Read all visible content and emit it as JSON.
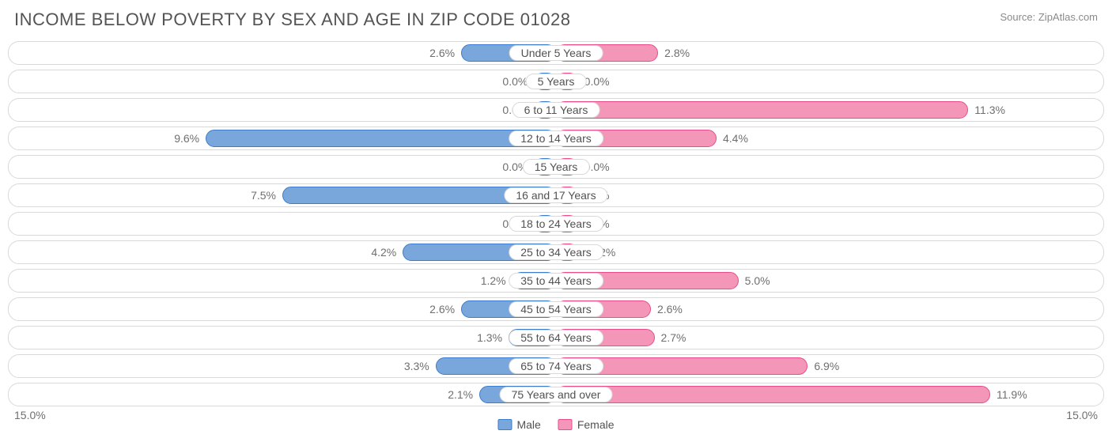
{
  "title": "INCOME BELOW POVERTY BY SEX AND AGE IN ZIP CODE 01028",
  "source": "Source: ZipAtlas.com",
  "axis_max_label": "15.0%",
  "axis_max_value": 15.0,
  "min_bar_pct": 2.0,
  "colors": {
    "male_fill": "#79a7db",
    "male_stroke": "#3d7cc9",
    "female_fill": "#f396b8",
    "female_stroke": "#e94d8b",
    "track_border": "#d9d9d9",
    "text": "#6f6f6f",
    "title": "#545454",
    "background": "#ffffff"
  },
  "legend": {
    "male": "Male",
    "female": "Female"
  },
  "rows": [
    {
      "category": "Under 5 Years",
      "male": 2.6,
      "male_label": "2.6%",
      "female": 2.8,
      "female_label": "2.8%"
    },
    {
      "category": "5 Years",
      "male": 0.0,
      "male_label": "0.0%",
      "female": 0.0,
      "female_label": "0.0%"
    },
    {
      "category": "6 to 11 Years",
      "male": 0.0,
      "male_label": "0.0%",
      "female": 11.3,
      "female_label": "11.3%"
    },
    {
      "category": "12 to 14 Years",
      "male": 9.6,
      "male_label": "9.6%",
      "female": 4.4,
      "female_label": "4.4%"
    },
    {
      "category": "15 Years",
      "male": 0.0,
      "male_label": "0.0%",
      "female": 0.0,
      "female_label": "0.0%"
    },
    {
      "category": "16 and 17 Years",
      "male": 7.5,
      "male_label": "7.5%",
      "female": 0.0,
      "female_label": "0.0%"
    },
    {
      "category": "18 to 24 Years",
      "male": 0.0,
      "male_label": "0.0%",
      "female": 0.0,
      "female_label": "0.0%"
    },
    {
      "category": "25 to 34 Years",
      "male": 4.2,
      "male_label": "4.2%",
      "female": 0.12,
      "female_label": "0.12%"
    },
    {
      "category": "35 to 44 Years",
      "male": 1.2,
      "male_label": "1.2%",
      "female": 5.0,
      "female_label": "5.0%"
    },
    {
      "category": "45 to 54 Years",
      "male": 2.6,
      "male_label": "2.6%",
      "female": 2.6,
      "female_label": "2.6%"
    },
    {
      "category": "55 to 64 Years",
      "male": 1.3,
      "male_label": "1.3%",
      "female": 2.7,
      "female_label": "2.7%"
    },
    {
      "category": "65 to 74 Years",
      "male": 3.3,
      "male_label": "3.3%",
      "female": 6.9,
      "female_label": "6.9%"
    },
    {
      "category": "75 Years and over",
      "male": 2.1,
      "male_label": "2.1%",
      "female": 11.9,
      "female_label": "11.9%"
    }
  ]
}
